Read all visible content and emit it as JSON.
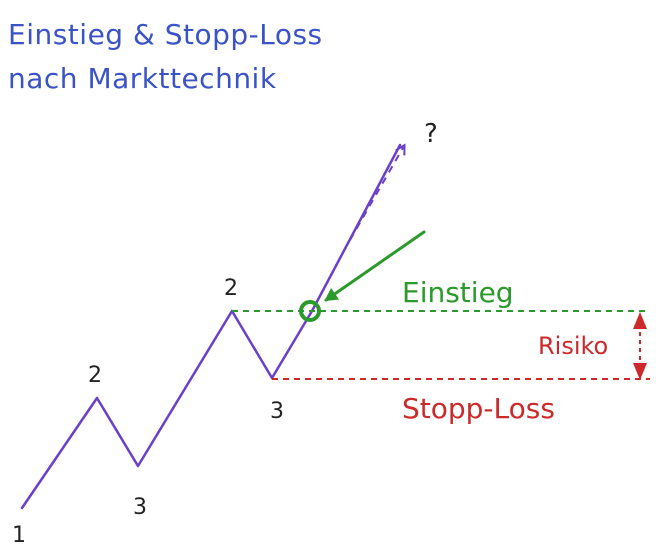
{
  "title": {
    "line1": "Einstieg & Stopp-Loss",
    "line2": "nach Markttechnik"
  },
  "points": {
    "p1": "1",
    "p2_first": "2",
    "p3_first": "3",
    "p2_second": "2",
    "p3_second": "3"
  },
  "question_mark": "?",
  "entry_label": "Einstieg",
  "stop_label": "Stopp-Loss",
  "risk_label": "Risiko",
  "colors": {
    "title": "#3a53c6",
    "price_line": "#6a40c8",
    "entry": "#2a9a2a",
    "stop": "#cc2a2a",
    "text": "#222222"
  }
}
